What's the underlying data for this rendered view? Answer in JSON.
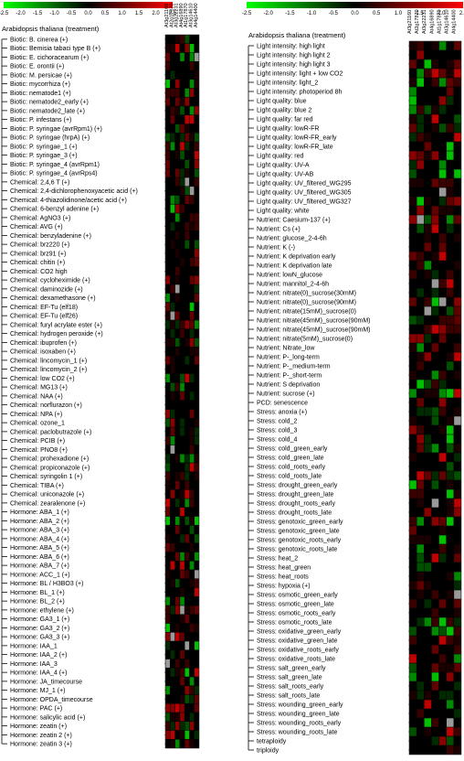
{
  "chart_data": [
    {
      "type": "heatmap",
      "title": "Arabidopsis thaliana (treatment)",
      "colorbar": {
        "ticks": [
          "-2.5",
          "-2.0",
          "-1.5",
          "-1.0",
          "-0.5",
          "0.0",
          "0.5",
          "1.0",
          "1.5",
          "2.0",
          "2.5"
        ],
        "low_color": "#00ff00",
        "mid_color": "#000000",
        "high_color": "#ff0000"
      },
      "columns": [
        "At3g21160",
        "At2g17870",
        "At3g22231",
        "At4g16890",
        "At1g17870",
        "At3g14610",
        "At4g14400"
      ],
      "rows": [
        "Biotic: B. cinerea (+)",
        "Biotic: Bemisia tabaci type B (+)",
        "Biotic: E. cichoracearum (+)",
        "Biotic: E. orontii (+)",
        "Biotic: M. persicae (+)",
        "Biotic: mycorrhiza (+)",
        "Biotic: nematode1 (+)",
        "Biotic: nematode2_early (+)",
        "Biotic: nematode2_late (+)",
        "Biotic: P. infestans (+)",
        "Biotic: P. syringae (avrRpm1) (+)",
        "Biotic: P. syringae (hrpA) (+)",
        "Biotic: P. syringae_1 (+)",
        "Biotic: P. syringae_3 (+)",
        "Biotic: P. syringae_4 (avrRpm1)",
        "Biotic: P. syringae_4 (avrRps4)",
        "Chemical: 2,4,6 T (+)",
        "Chemical: 2,4-dichlorophenoxyacetic acid (+)",
        "Chemical: 4-thiazolidinone/acetic acid (+)",
        "Chemical: 6-benzyl adenine (+)",
        "Chemical: AgNO3 (+)",
        "Chemical: AVG (+)",
        "Chemical: benzyladenine (+)",
        "Chemical: brz220 (+)",
        "Chemical: brz91 (+)",
        "Chemical: chitin (+)",
        "Chemical: CO2 high",
        "Chemical: cycloheximide (+)",
        "Chemical: daminozide (+)",
        "Chemical: dexamethasone (+)",
        "Chemical: EF-Tu (elf18)",
        "Chemical: EF-Tu (elf26)",
        "Chemical: furyl acrylate ester (+)",
        "Chemical: hydrogen peroxide (+)",
        "Chemical: ibuprofen (+)",
        "Chemical: isoxaben (+)",
        "Chemical: lincomycin_1 (+)",
        "Chemical: lincomycin_2 (+)",
        "Chemical: low CO2 (+)",
        "Chemical: MG13 (+)",
        "Chemical: NAA (+)",
        "Chemical: norflurazon (+)",
        "Chemical: NPA (+)",
        "Chemical: ozone_1",
        "Chemical: paclobutrazole (+)",
        "Chemical: PCIB (+)",
        "Chemical: PNO8 (+)",
        "Chemical: prohexadione (+)",
        "Chemical: propiconazole (+)",
        "Chemical: syringolin 1 (+)",
        "Chemical: TIBA (+)",
        "Chemical: uniconazole (+)",
        "Chemical: zearalenone (+)",
        "Hormone: ABA_1 (+)",
        "Hormone: ABA_2 (+)",
        "Hormone: ABA_3 (+)",
        "Hormone: ABA_4 (+)",
        "Hormone: ABA_5 (+)",
        "Hormone: ABA_6 (+)",
        "Hormone: ABA_7 (+)",
        "Hormone: ACC_1 (+)",
        "Hormone: BL / H3BO3 (+)",
        "Hormone: BL_1 (+)",
        "Hormone: BL_2 (+)",
        "Hormone: ethylene (+)",
        "Hormone: GA3_1 (+)",
        "Hormone: GA3_2 (+)",
        "Hormone: GA3_3 (+)",
        "Hormone: IAA_1",
        "Hormone: IAA_2 (+)",
        "Hormone: IAA_3",
        "Hormone: IAA_4 (+)",
        "Hormone: JA_timecourse",
        "Hormone: MJ_1 (+)",
        "Hormone: OPDA_timecourse",
        "Hormone: PAC (+)",
        "Hormone: salicylic acid (+)",
        "Hormone: zeatin (+)",
        "Hormone: zeatin 2 (+)",
        "Hormone: zeatin 3 (+)"
      ]
    },
    {
      "type": "heatmap",
      "title": "Arabidopsis thaliana (treatment)",
      "colorbar": {
        "ticks": [
          "-2.5",
          "-2.0",
          "-1.5",
          "-1.0",
          "-0.5",
          "0.0",
          "0.5",
          "1.0",
          "1.5",
          "2.0",
          "2.5"
        ],
        "low_color": "#00ff00",
        "mid_color": "#000000",
        "high_color": "#ff0000"
      },
      "columns": [
        "At3g21160",
        "At2g17870",
        "At3g22231",
        "At4g16890",
        "At1g17870",
        "At3g14610",
        "At4g14400"
      ],
      "rows": [
        "Light intensity: high light",
        "Light intensity: high light 2",
        "Light intensity: high light 3",
        "Light intensity: light + low CO2",
        "Light intensity: light_2",
        "Light intensity: photoperiod 8h",
        "Light quality: blue",
        "Light quality: blue 2",
        "Light quality: far red",
        "Light quality: lowR-FR",
        "Light quality: lowR-FR_early",
        "Light quality: lowR-FR_late",
        "Light quality: red",
        "Light quality: UV-A",
        "Light quality: UV-AB",
        "Light quality: UV_filtered_WG295",
        "Light quality: UV_filtered_WG305",
        "Light quality: UV_filtered_WG327",
        "Light quality: white",
        "Nutrient: Caesium-137 (+)",
        "Nutrient: Cs (+)",
        "Nutrient: glucose_2-4-6h",
        "Nutrient: K (-)",
        "Nutrient: K deprivation early",
        "Nutrient: K deprivation late",
        "Nutrient: lowN_glucose",
        "Nutrient: mannitol_2-4-6h",
        "Nutrient: nitrate(0)_sucrose(30mM)",
        "Nutrient: nitrate(0)_sucrose(90mM)",
        "Nutrient: nitrate(15mM)_sucrose(0)",
        "Nutrient: nitrate(45mM)_sucrose(90mM)",
        "Nutrient: nitrate(45mM)_sucrose(90mM)",
        "Nutrient: nitrate(5mM)_sucrose(0)",
        "Nutrient: Nitrate_low",
        "Nutrient: P-_long-term",
        "Nutrient: P-_medium-term",
        "Nutrient: P-_short-term",
        "Nutrient: S deprivation",
        "Nutrient: sucrose (+)",
        "PCD: senescence",
        "Stress: anoxia (+)",
        "Stress: cold_2",
        "Stress: cold_3",
        "Stress: cold_4",
        "Stress: cold_green_early",
        "Stress: cold_green_late",
        "Stress: cold_roots_early",
        "Stress: cold_roots_late",
        "Stress: drought_green_early",
        "Stress: drought_green_late",
        "Stress: drought_roots_early",
        "Stress: drought_roots_late",
        "Stress: genotoxic_green_early",
        "Stress: genotoxic_green_late",
        "Stress: genotoxic_roots_early",
        "Stress: genotoxic_roots_late",
        "Stress: heat_2",
        "Stress: heat_green",
        "Stress: heat_roots",
        "Stress: hypoxia (+)",
        "Stress: osmotic_green_early",
        "Stress: osmotic_green_late",
        "Stress: osmotic_roots_early",
        "Stress: osmotic_roots_late",
        "Stress: oxidative_green_early",
        "Stress: oxidative_green_late",
        "Stress: oxidative_roots_early",
        "Stress: oxidative_roots_late",
        "Stress: salt_green_early",
        "Stress: salt_green_late",
        "Stress: salt_roots_early",
        "Stress: salt_roots_late",
        "Stress: wounding_green_early",
        "Stress: wounding_green_late",
        "Stress: wounding_roots_early",
        "Stress: wounding_roots_late",
        "tetraploidy",
        "triploidy"
      ]
    }
  ]
}
